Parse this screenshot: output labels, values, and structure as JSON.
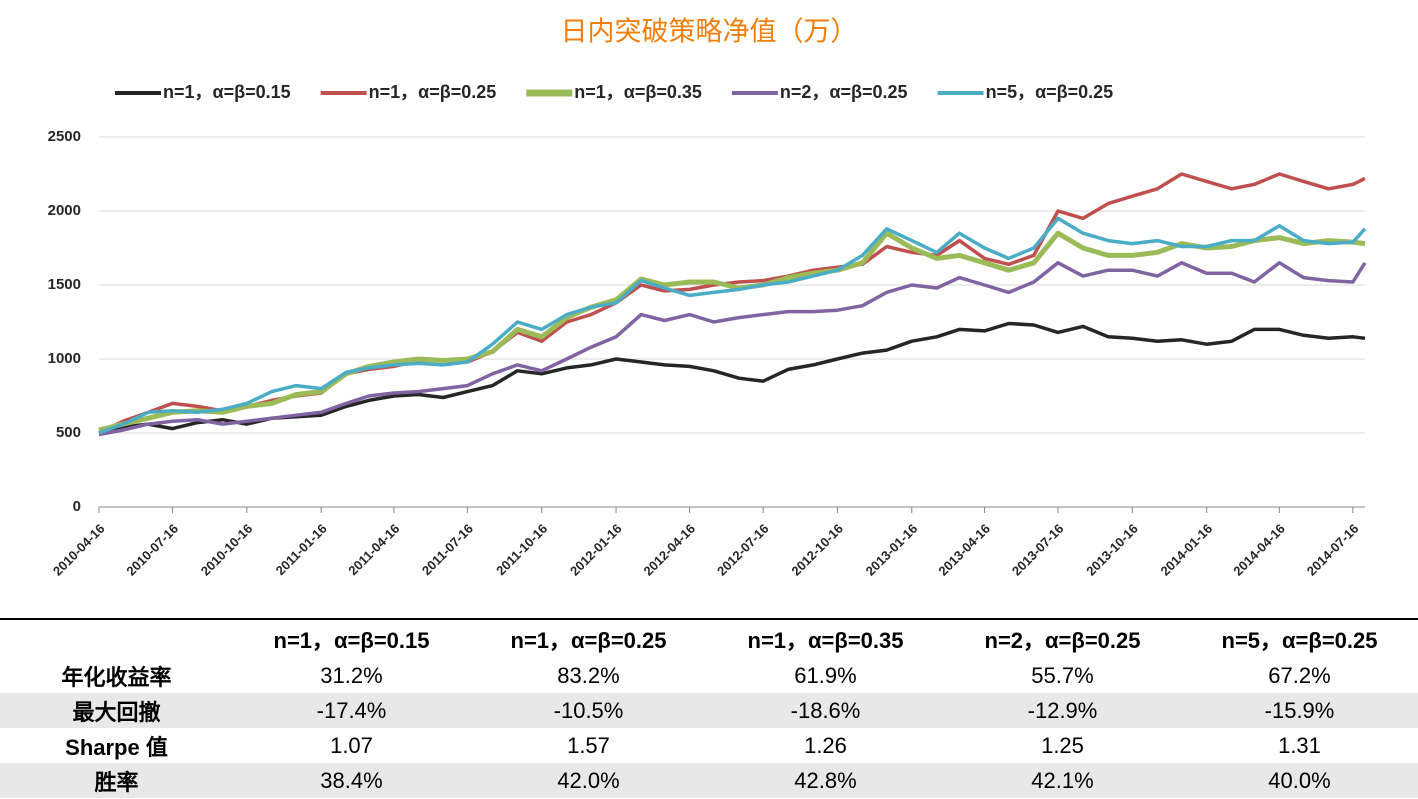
{
  "chart_data": {
    "type": "line",
    "title": "日内突破策略净值（万）",
    "x": [
      "2010-04-16",
      "2010-05-16",
      "2010-06-16",
      "2010-07-16",
      "2010-08-16",
      "2010-09-16",
      "2010-10-16",
      "2010-11-16",
      "2010-12-16",
      "2011-01-16",
      "2011-02-16",
      "2011-03-16",
      "2011-04-16",
      "2011-05-16",
      "2011-06-16",
      "2011-07-16",
      "2011-08-16",
      "2011-09-16",
      "2011-10-16",
      "2011-11-16",
      "2011-12-16",
      "2012-01-16",
      "2012-02-16",
      "2012-03-16",
      "2012-04-16",
      "2012-05-16",
      "2012-06-16",
      "2012-07-16",
      "2012-08-16",
      "2012-09-16",
      "2012-10-16",
      "2012-11-16",
      "2012-12-16",
      "2013-01-16",
      "2013-02-16",
      "2013-03-16",
      "2013-04-16",
      "2013-05-16",
      "2013-06-16",
      "2013-07-16",
      "2013-08-16",
      "2013-09-16",
      "2013-10-16",
      "2013-11-16",
      "2013-12-16",
      "2014-01-16",
      "2014-02-16",
      "2014-03-16",
      "2014-04-16",
      "2014-05-16",
      "2014-06-16",
      "2014-07-16",
      "2014-07-31"
    ],
    "series": [
      {
        "name": "n=1，α=β=0.15",
        "color": "#262626",
        "values": [
          500,
          540,
          560,
          530,
          570,
          590,
          560,
          600,
          610,
          620,
          680,
          720,
          750,
          760,
          740,
          780,
          820,
          920,
          900,
          940,
          960,
          1000,
          980,
          960,
          950,
          920,
          870,
          850,
          930,
          960,
          1000,
          1040,
          1060,
          1120,
          1150,
          1200,
          1190,
          1240,
          1230,
          1180,
          1220,
          1150,
          1140,
          1120,
          1130,
          1100,
          1120,
          1200,
          1200,
          1160,
          1140,
          1150,
          1140
        ]
      },
      {
        "name": "n=1，α=β=0.25",
        "color": "#c0504d",
        "values": [
          500,
          580,
          640,
          700,
          680,
          650,
          680,
          720,
          750,
          770,
          900,
          930,
          950,
          990,
          990,
          980,
          1050,
          1180,
          1120,
          1250,
          1300,
          1380,
          1500,
          1460,
          1470,
          1500,
          1520,
          1530,
          1560,
          1600,
          1620,
          1640,
          1760,
          1720,
          1700,
          1800,
          1680,
          1640,
          1700,
          2000,
          1950,
          2050,
          2100,
          2150,
          2250,
          2200,
          2150,
          2180,
          2250,
          2200,
          2150,
          2180,
          2220
        ]
      },
      {
        "name": "n=1，α=β=0.35",
        "color": "#9bbb59",
        "values": [
          520,
          560,
          600,
          640,
          650,
          640,
          680,
          700,
          760,
          780,
          900,
          950,
          980,
          1000,
          990,
          1000,
          1050,
          1200,
          1150,
          1280,
          1350,
          1400,
          1540,
          1500,
          1520,
          1520,
          1480,
          1500,
          1550,
          1580,
          1600,
          1650,
          1850,
          1750,
          1680,
          1700,
          1650,
          1600,
          1650,
          1850,
          1750,
          1700,
          1700,
          1720,
          1780,
          1750,
          1760,
          1800,
          1820,
          1780,
          1800,
          1790,
          1780
        ]
      },
      {
        "name": "n=2，α=β=0.25",
        "color": "#8064a2",
        "values": [
          490,
          520,
          560,
          580,
          590,
          560,
          580,
          600,
          620,
          640,
          700,
          750,
          770,
          780,
          800,
          820,
          900,
          960,
          920,
          1000,
          1080,
          1150,
          1300,
          1260,
          1300,
          1250,
          1280,
          1300,
          1320,
          1320,
          1330,
          1360,
          1450,
          1500,
          1480,
          1550,
          1500,
          1450,
          1520,
          1650,
          1560,
          1600,
          1600,
          1560,
          1650,
          1580,
          1580,
          1520,
          1650,
          1550,
          1530,
          1520,
          1650
        ]
      },
      {
        "name": "n=5，α=β=0.25",
        "color": "#4bacc6",
        "values": [
          500,
          560,
          640,
          650,
          640,
          660,
          700,
          780,
          820,
          800,
          910,
          940,
          960,
          970,
          960,
          980,
          1100,
          1250,
          1200,
          1300,
          1350,
          1380,
          1530,
          1480,
          1430,
          1450,
          1470,
          1500,
          1520,
          1560,
          1600,
          1700,
          1880,
          1800,
          1720,
          1850,
          1750,
          1680,
          1750,
          1950,
          1850,
          1800,
          1780,
          1800,
          1760,
          1760,
          1800,
          1800,
          1900,
          1800,
          1780,
          1790,
          1880
        ]
      }
    ],
    "xlim": [
      "2010-04-16",
      "2014-07-31"
    ],
    "xticks": [
      "2010-04-16",
      "2010-07-16",
      "2010-10-16",
      "2011-01-16",
      "2011-04-16",
      "2011-07-16",
      "2011-10-16",
      "2012-01-16",
      "2012-04-16",
      "2012-07-16",
      "2012-10-16",
      "2013-01-16",
      "2013-04-16",
      "2013-07-16",
      "2013-10-16",
      "2014-01-16",
      "2014-04-16",
      "2014-07-16"
    ],
    "ylim": [
      0,
      2500
    ],
    "yticks": [
      0,
      500,
      1000,
      1500,
      2000,
      2500
    ],
    "grid": true,
    "legend": "top"
  },
  "table": {
    "columns": [
      "n=1，α=β=0.15",
      "n=1，α=β=0.25",
      "n=1，α=β=0.35",
      "n=2，α=β=0.25",
      "n=5，α=β=0.25"
    ],
    "rows": [
      [
        "年化收益率",
        "31.2%",
        "83.2%",
        "61.9%",
        "55.7%",
        "67.2%"
      ],
      [
        "最大回撤",
        "-17.4%",
        "-10.5%",
        "-18.6%",
        "-12.9%",
        "-15.9%"
      ],
      [
        "Sharpe 值",
        "1.07",
        "1.57",
        "1.26",
        "1.25",
        "1.31"
      ],
      [
        "胜率",
        "38.4%",
        "42.0%",
        "42.8%",
        "42.1%",
        "40.0%"
      ]
    ]
  }
}
